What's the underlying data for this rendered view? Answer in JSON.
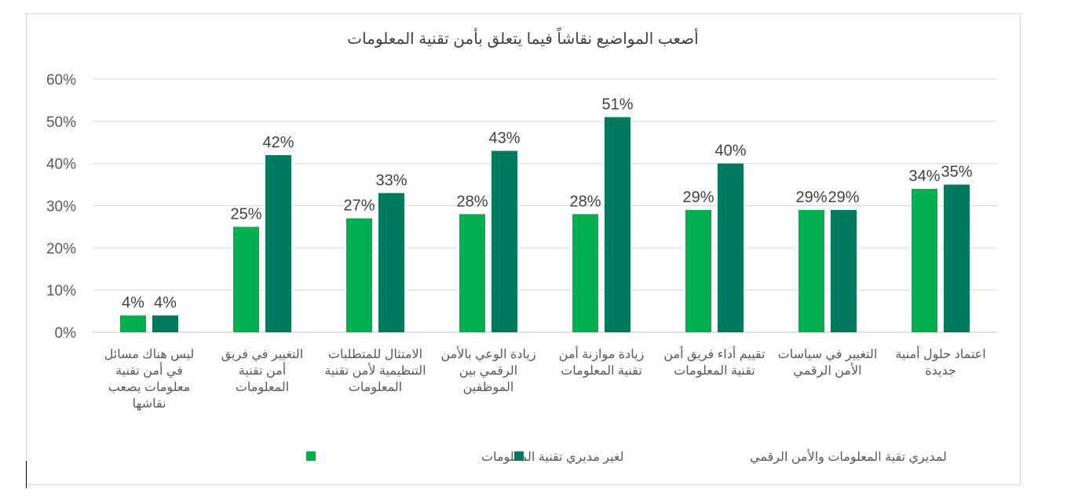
{
  "chart_data": {
    "type": "bar",
    "title": "أصعب المواضيع نقاشاً فيما يتعلق بأمن تقنية المعلومات",
    "xlabel": "",
    "ylabel": "",
    "ylim": [
      0,
      60
    ],
    "y_ticks": [
      "0%",
      "10%",
      "20%",
      "30%",
      "40%",
      "50%",
      "60%"
    ],
    "grid": true,
    "legend_position": "bottom",
    "categories": [
      [
        "ليس هناك مسائل",
        "في أمن تقنية",
        "معلومات يصعب",
        "نقاشها"
      ],
      [
        "التغيير في فريق",
        "أمن تقنية",
        "المعلومات"
      ],
      [
        "الامتثال للمتطلبات",
        "التنظيمية لأمن تقنية",
        "المعلومات"
      ],
      [
        "زيادة الوعي بالأمن",
        "الرقمي بين",
        "الموظفين"
      ],
      [
        "زيادة موازنة أمن",
        "تقنية المعلومات"
      ],
      [
        "تقييم أداء فريق أمن",
        "تقنية المعلومات"
      ],
      [
        "التغيير في سياسات",
        "الأمن الرقمي"
      ],
      [
        "اعتماد حلول أمنية",
        "جديدة"
      ]
    ],
    "series": [
      {
        "name": "لغير مديري تقنية المعلومات",
        "color": "#00b050",
        "values": [
          4,
          25,
          27,
          28,
          28,
          29,
          29,
          34
        ],
        "labels": [
          "4%",
          "25%",
          "27%",
          "28%",
          "28%",
          "29%",
          "29%",
          "34%"
        ]
      },
      {
        "name": "لمديري تقية المعلومات والأمن الرقمي",
        "color": "#007a5e",
        "values": [
          4,
          42,
          33,
          43,
          51,
          40,
          29,
          35
        ],
        "labels": [
          "4%",
          "42%",
          "33%",
          "43%",
          "51%",
          "40%",
          "29%",
          "35%"
        ]
      }
    ]
  }
}
